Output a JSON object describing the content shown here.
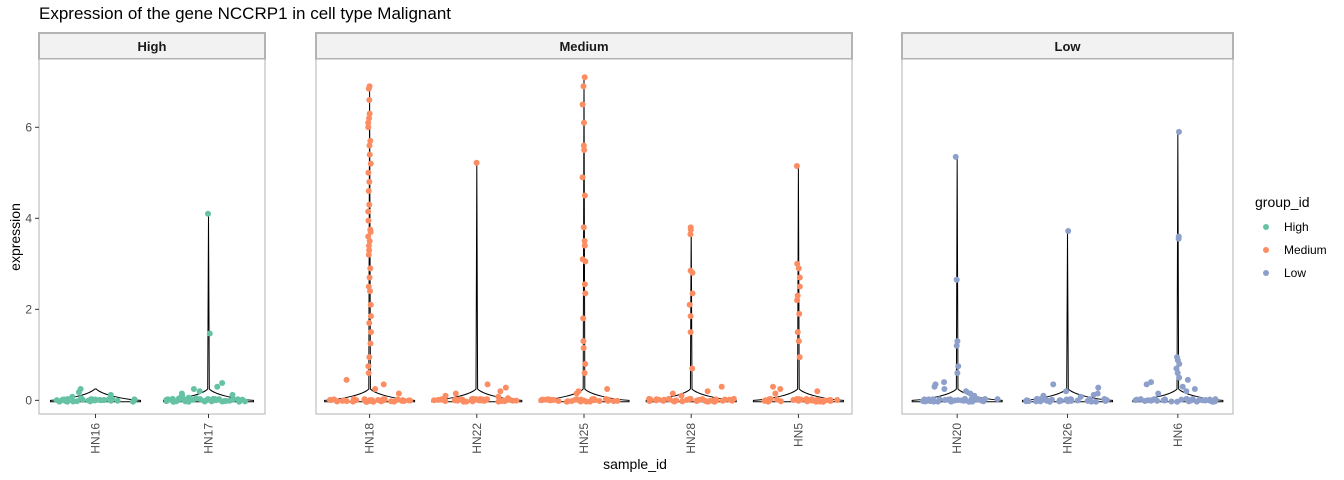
{
  "chart_data": {
    "type": "scatter",
    "title": "Expression of the gene NCCRP1 in cell type Malignant",
    "xlabel": "sample_id",
    "ylabel": "expression",
    "ylim": [
      -0.3,
      7.5
    ],
    "y_ticks": [
      0,
      2,
      4,
      6
    ],
    "grid": false,
    "legend": {
      "title": "group_id",
      "placement": "right",
      "entries": [
        "High",
        "Medium",
        "Low"
      ]
    },
    "colors": {
      "High": "#66c2a5",
      "Medium": "#fc8d62",
      "Low": "#8da0cb"
    },
    "facets": [
      {
        "label": "High",
        "group": "High",
        "samples": [
          {
            "id": "HN16",
            "max": 0.25,
            "points": [
              0.25,
              0.18,
              0.12,
              0.08,
              0.05,
              0.03
            ]
          },
          {
            "id": "HN17",
            "max": 4.1,
            "points": [
              4.1,
              1.47,
              0.38,
              0.3,
              0.25,
              0.2,
              0.15,
              0.12,
              0.1,
              0.08,
              0.06,
              0.05,
              0.04,
              0.03
            ]
          }
        ]
      },
      {
        "label": "Medium",
        "group": "Medium",
        "samples": [
          {
            "id": "HN18",
            "max": 6.9,
            "points": [
              6.9,
              6.85,
              6.6,
              6.3,
              6.2,
              6.1,
              6.0,
              5.7,
              5.6,
              5.4,
              5.2,
              5.0,
              4.8,
              4.6,
              4.3,
              4.15,
              3.95,
              3.75,
              3.7,
              3.6,
              3.5,
              3.4,
              3.3,
              3.2,
              2.9,
              2.7,
              2.5,
              2.4,
              2.1,
              1.85,
              1.7,
              1.5,
              1.25,
              0.95,
              0.75,
              0.6,
              0.45,
              0.35,
              0.25,
              0.15
            ]
          },
          {
            "id": "HN22",
            "max": 5.22,
            "points": [
              5.22,
              0.35,
              0.28,
              0.2,
              0.15,
              0.1,
              0.08,
              0.05
            ]
          },
          {
            "id": "HN25",
            "max": 7.1,
            "points": [
              7.1,
              6.9,
              6.5,
              6.1,
              5.6,
              5.5,
              4.9,
              4.5,
              3.8,
              3.5,
              3.4,
              3.1,
              3.05,
              2.55,
              2.35,
              1.8,
              1.3,
              1.15,
              0.8,
              0.6,
              0.25,
              0.2,
              0.15
            ]
          },
          {
            "id": "HN28",
            "max": 3.8,
            "points": [
              3.8,
              3.75,
              3.65,
              2.85,
              2.8,
              2.35,
              2.1,
              1.85,
              1.5,
              0.7,
              0.3,
              0.2,
              0.15,
              0.1
            ]
          },
          {
            "id": "HN5",
            "max": 5.15,
            "points": [
              5.15,
              3.0,
              2.9,
              2.7,
              2.5,
              2.3,
              2.2,
              1.9,
              1.5,
              1.3,
              0.95,
              0.3,
              0.25,
              0.2,
              0.15
            ]
          }
        ]
      },
      {
        "label": "Low",
        "group": "Low",
        "samples": [
          {
            "id": "HN20",
            "max": 5.35,
            "points": [
              5.35,
              2.65,
              1.3,
              1.2,
              0.75,
              0.6,
              0.4,
              0.35,
              0.3,
              0.25,
              0.2,
              0.15,
              0.1
            ]
          },
          {
            "id": "HN26",
            "max": 3.72,
            "points": [
              3.72,
              0.35,
              0.28,
              0.2,
              0.15,
              0.12,
              0.1,
              0.08
            ]
          },
          {
            "id": "HN6",
            "max": 5.9,
            "points": [
              5.9,
              3.6,
              3.55,
              0.95,
              0.88,
              0.8,
              0.7,
              0.6,
              0.5,
              0.45,
              0.4,
              0.35,
              0.3,
              0.25,
              0.2,
              0.15
            ]
          }
        ]
      }
    ]
  }
}
